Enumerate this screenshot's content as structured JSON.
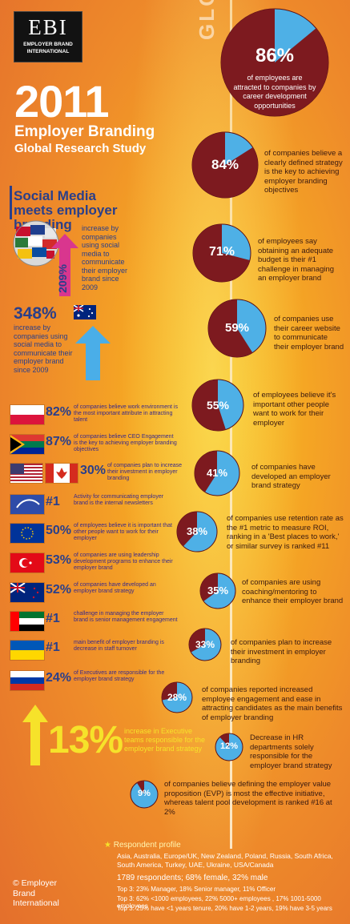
{
  "logo": {
    "letters": "EBI",
    "line1": "EMPLOYER BRAND",
    "line2": "INTERNATIONAL"
  },
  "header": {
    "year": "2011",
    "title": "Employer Branding",
    "subtitle": "Global Research Study",
    "global": "GLOBAL"
  },
  "social": {
    "heading": "Social Media meets employer branding",
    "pct_209": "209%",
    "text_209": "increase by companies using social media to communicate their employer brand since 2009",
    "pct_348": "348%",
    "text_348": "increase by companies using social media to communicate their employer brand since 2009"
  },
  "chart_data": {
    "type": "pie",
    "title": "",
    "slices": [
      {
        "value": 86,
        "label": "86%",
        "text": "of employees are attracted to companies by career development opportunities"
      },
      {
        "value": 84,
        "label": "84%",
        "text": "of companies believe a clearly defined strategy is the key to achieving employer branding objectives"
      },
      {
        "value": 71,
        "label": "71%",
        "text": "of employees say obtaining an adequate budget is their #1 challenge in managing an employer brand"
      },
      {
        "value": 59,
        "label": "59%",
        "text": "of companies use their career website to communicate their employer brand"
      },
      {
        "value": 55,
        "label": "55%",
        "text": "of employees believe it's important other people want to work for their employer"
      },
      {
        "value": 41,
        "label": "41%",
        "text": "of companies have developed an employer brand strategy"
      },
      {
        "value": 38,
        "label": "38%",
        "text": "of companies use retention rate as the #1 metric to measure ROI, ranking in a 'Best places to work,' or similar survey is ranked #11"
      },
      {
        "value": 35,
        "label": "35%",
        "text": "of companies are using coaching/mentoring to enhance their employer brand"
      },
      {
        "value": 33,
        "label": "33%",
        "text": "of companies plan to increase their investment in employer branding"
      },
      {
        "value": 28,
        "label": "28%",
        "text": "of companies reported increased employee engagement and ease in attracting candidates as the main benefits of employer branding"
      },
      {
        "value": 12,
        "label": "12%",
        "text": "Decrease in HR departments solely responsible for the employer brand strategy"
      },
      {
        "value": 9,
        "label": "9%",
        "text": "of companies believe defining the employer value proposition (EVP) is most the effective initiative, whereas talent pool development is ranked #16 at 2%"
      }
    ],
    "colors": {
      "highlight": "#7d1a1f",
      "rest": "#4eb0e6"
    }
  },
  "countries": [
    {
      "flag": "poland",
      "pct": "82%",
      "text": "of companies believe work environment is the most important attribute in attracting talent"
    },
    {
      "flag": "south-africa",
      "pct": "87%",
      "text": "of companies believe CEO Engagement is the key to achieving employer branding objectives"
    },
    {
      "flag": "usa-canada",
      "pct": "30%",
      "text": "of companies plan to increase their investment in employer branding"
    },
    {
      "flag": "eu-blue",
      "pct": "#1",
      "text": "Activity for communicating employer brand is the internal newsletters"
    },
    {
      "flag": "eu",
      "pct": "50%",
      "text": "of employees believe it is important that other people want to work for their employer"
    },
    {
      "flag": "turkey",
      "pct": "53%",
      "text": "of companies are using leadership development programs to enhance their employer brand"
    },
    {
      "flag": "new-zealand",
      "pct": "52%",
      "text": "of companies have developed an employer brand strategy"
    },
    {
      "flag": "uae",
      "pct": "#1",
      "text": "challenge in managing the employer brand is senior management engagement"
    },
    {
      "flag": "ukraine",
      "pct": "#1",
      "text": "main benefit of employer branding is decrease in staff turnover"
    },
    {
      "flag": "russia",
      "pct": "24%",
      "text": "of Executives are responsible for the employer brand strategy"
    }
  ],
  "executive": {
    "pct": "13%",
    "text": "increase in Executive teams responsible for the employer brand strategy"
  },
  "footer": {
    "copyright": "© Employer Brand International",
    "profile_label": "Respondent profile",
    "countries": "Asia, Australia, Europe/UK, New Zealand, Poland, Russia, South Africa, South America, Turkey, UAE, Ukraine, USA/Canada",
    "respondents": "1789 respondents; 68% female, 32% male",
    "top1": "Top 3: 23% Manager, 18% Senior manager, 11% Officer",
    "top2": "Top 3: 62% <1000 employees, 22% 5000+ employees , 17% 1001-5000 employees",
    "top3": "Top 3: 25% have <1 years tenure, 20% have 1-2 years, 19% have 3-5 years"
  }
}
